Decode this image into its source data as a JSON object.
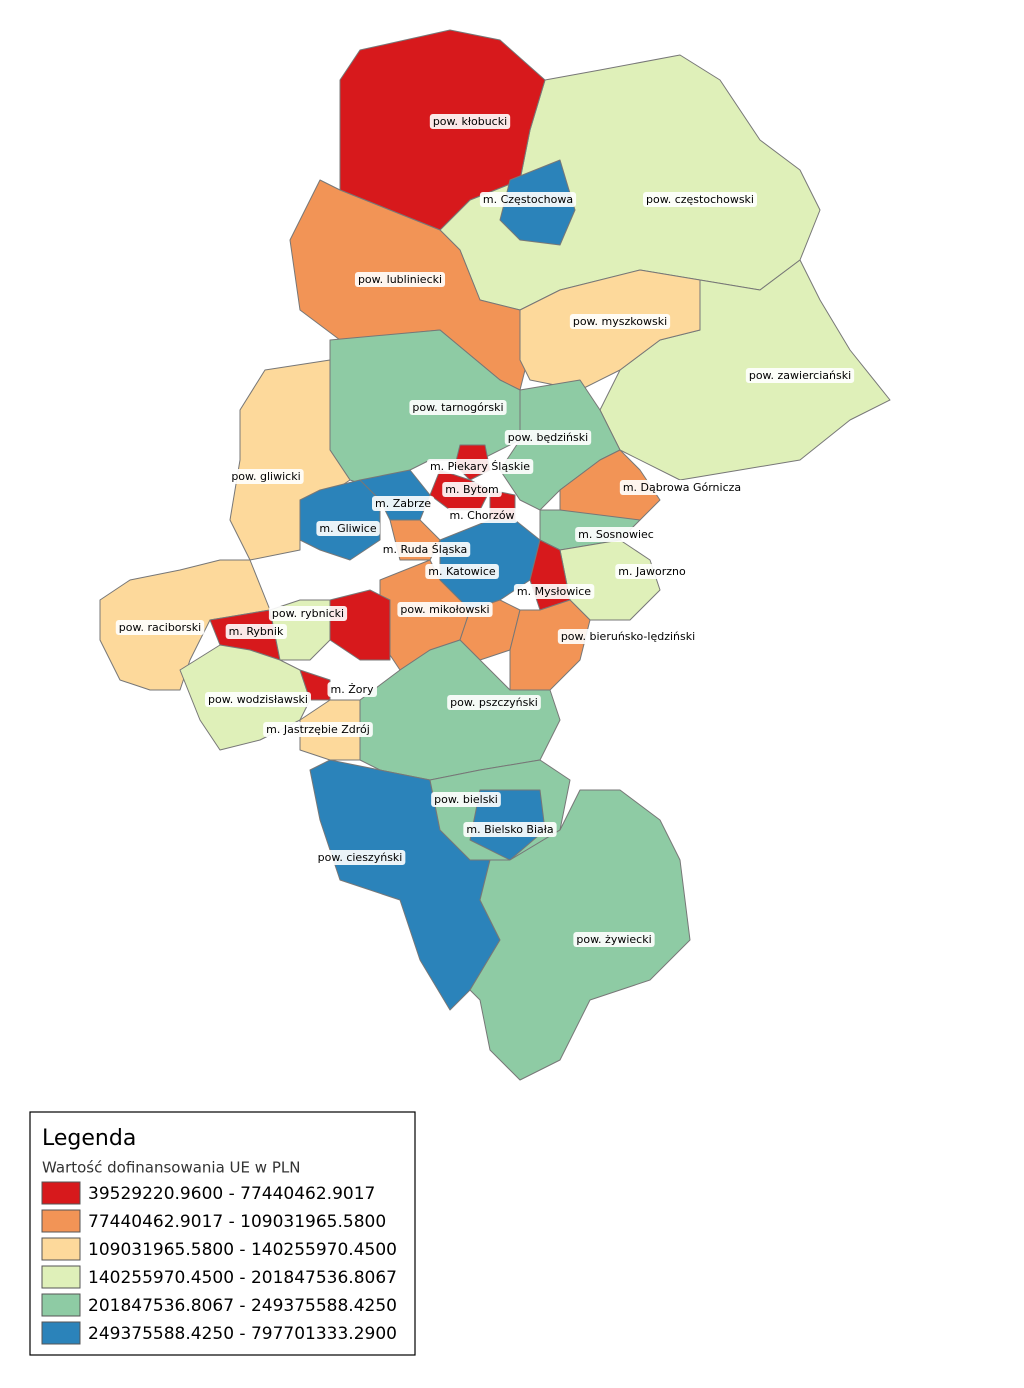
{
  "map": {
    "regions": [
      {
        "label": "pow. kłobucki"
      },
      {
        "label": "pow. częstochowski"
      },
      {
        "label": "m. Częstochowa"
      },
      {
        "label": "pow. lubliniecki"
      },
      {
        "label": "pow. myszkowski"
      },
      {
        "label": "pow. zawierciański"
      },
      {
        "label": "pow. tarnogórski"
      },
      {
        "label": "pow. będziński"
      },
      {
        "label": "m. Piekary Śląskie"
      },
      {
        "label": "m. Bytom"
      },
      {
        "label": "m. Chorzów"
      },
      {
        "label": "pow. gliwicki"
      },
      {
        "label": "m. Gliwice"
      },
      {
        "label": "m. Zabrze"
      },
      {
        "label": "m. Ruda Śląska"
      },
      {
        "label": "m. Katowice"
      },
      {
        "label": "m. Dąbrowa Górnicza"
      },
      {
        "label": "m. Sosnowiec"
      },
      {
        "label": "m. Jaworzno"
      },
      {
        "label": "m. Mysłowice"
      },
      {
        "label": "pow. mikołowski"
      },
      {
        "label": "pow. bieruńsko-lędziński"
      },
      {
        "label": "pow. rybnicki"
      },
      {
        "label": "m. Rybnik"
      },
      {
        "label": "m. Żory"
      },
      {
        "label": "pow. raciborski"
      },
      {
        "label": "pow. wodzisławski"
      },
      {
        "label": "m. Jastrzębie Zdrój"
      },
      {
        "label": "pow. pszczyński"
      },
      {
        "label": "pow. cieszyński"
      },
      {
        "label": "pow. bielski"
      },
      {
        "label": "m. Bielsko Biała"
      },
      {
        "label": "pow. żywiecki"
      }
    ]
  },
  "legend": {
    "title": "Legenda",
    "subtitle": "Wartość dofinansowania UE w PLN",
    "items": [
      {
        "label": "39529220.9600 - 77440462.9017",
        "color": "#d7191c"
      },
      {
        "label": "77440462.9017 - 109031965.5800",
        "color": "#f29456"
      },
      {
        "label": "109031965.5800 - 140255970.4500",
        "color": "#fdd99b"
      },
      {
        "label": "140255970.4500 - 201847536.8067",
        "color": "#dff0b9"
      },
      {
        "label": "201847536.8067 - 249375588.4250",
        "color": "#8ecba4"
      },
      {
        "label": "249375588.4250 - 797701333.2900",
        "color": "#2b83ba"
      }
    ]
  }
}
